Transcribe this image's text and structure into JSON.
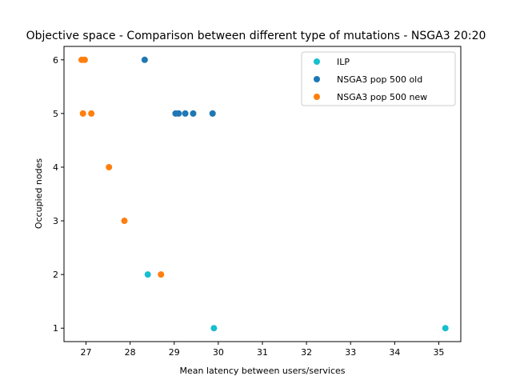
{
  "chart_data": {
    "type": "scatter",
    "title": "Objective space - Comparison between different type of mutations - NSGA3 20:20",
    "xlabel": "Mean latency between users/services",
    "ylabel": "Occupied nodes",
    "xlim": [
      26.5,
      35.5
    ],
    "ylim": [
      0.75,
      6.25
    ],
    "xticks": [
      "27",
      "28",
      "29",
      "30",
      "31",
      "32",
      "33",
      "34",
      "35"
    ],
    "yticks": [
      "1",
      "2",
      "3",
      "4",
      "5",
      "6"
    ],
    "grid": false,
    "legend_position": "top-right",
    "series": [
      {
        "name": "ILP",
        "color": "#17becf",
        "points": [
          {
            "x": 28.4,
            "y": 2
          },
          {
            "x": 29.9,
            "y": 1
          },
          {
            "x": 35.15,
            "y": 1
          }
        ]
      },
      {
        "name": "NSGA3 pop 500 old",
        "color": "#1f77b4",
        "points": [
          {
            "x": 28.33,
            "y": 6
          },
          {
            "x": 29.03,
            "y": 5
          },
          {
            "x": 29.1,
            "y": 5
          },
          {
            "x": 29.25,
            "y": 5
          },
          {
            "x": 29.43,
            "y": 5
          },
          {
            "x": 29.87,
            "y": 5
          }
        ]
      },
      {
        "name": "NSGA3 pop 500 new",
        "color": "#ff7f0e",
        "points": [
          {
            "x": 26.9,
            "y": 6
          },
          {
            "x": 26.97,
            "y": 6
          },
          {
            "x": 26.93,
            "y": 5
          },
          {
            "x": 27.12,
            "y": 5
          },
          {
            "x": 27.52,
            "y": 4
          },
          {
            "x": 27.87,
            "y": 3
          },
          {
            "x": 28.7,
            "y": 2
          }
        ]
      }
    ]
  }
}
